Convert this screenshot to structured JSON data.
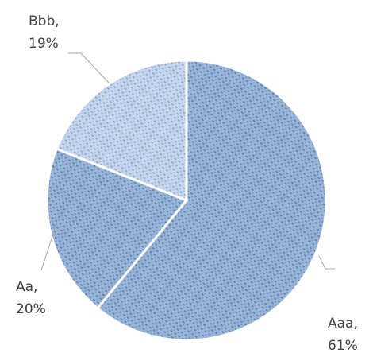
{
  "chart_data": {
    "type": "pie",
    "slices": [
      {
        "label": "Aaa",
        "percent": "61%",
        "value": 61
      },
      {
        "label": "Aa",
        "percent": "20%",
        "value": 20
      },
      {
        "label": "Bbb",
        "percent": "19%",
        "value": 19
      }
    ],
    "data_labels": "category, percent",
    "start": "12 o'clock, clockwise",
    "colors": {
      "fill": "#9db7d9",
      "hatch": "#5f86b8",
      "border": "#ffffff",
      "leader": "#a6a6a6",
      "label": "#404040"
    }
  }
}
